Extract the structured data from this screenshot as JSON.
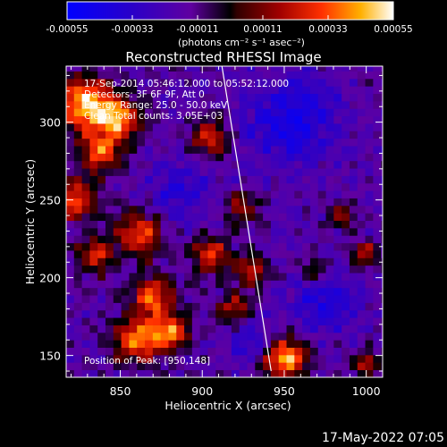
{
  "chart_data": {
    "type": "heatmap",
    "title": "Reconstructed RHESSI Image",
    "xlabel": "Heliocentric X (arcsec)",
    "ylabel": "Heliocentric Y (arcsec)",
    "xlim": [
      817,
      1010
    ],
    "ylim": [
      136,
      336
    ],
    "x_ticks": [
      850,
      900,
      950,
      1000
    ],
    "y_ticks": [
      150,
      200,
      250,
      300
    ],
    "x_tick_labels": [
      "850",
      "900",
      "950",
      "1000"
    ],
    "y_tick_labels": [
      "150",
      "200",
      "250",
      "300"
    ],
    "colorbar": {
      "range": [
        -0.00055,
        0.00055
      ],
      "ticks": [
        -0.00055,
        -0.00033,
        -0.00011,
        0.00011,
        0.00033,
        0.00055
      ],
      "tick_labels": [
        "-0.00055",
        "-0.00033",
        "-0.00011",
        "0.00011",
        "0.00033",
        "0.00055"
      ],
      "unit_label": "(photons cm⁻² s⁻¹ asec⁻²)"
    },
    "annotations": [
      "17-Sep-2014 05:46:12.000 to 05:52:12.000",
      "Detectors: 3F 6F 9F, Att 0",
      "Energy Range: 25.0 - 50.0 keV",
      "Clean     Total counts: 3.05E+03"
    ],
    "peak_label": "Position of Peak:  [950,148]",
    "peak": [
      950,
      148
    ],
    "limb_line": [
      [
        912,
        336
      ],
      [
        942,
        140
      ]
    ],
    "bright_sources": [
      {
        "x": 828,
        "y": 312,
        "amp": 1.0,
        "r": 12
      },
      {
        "x": 848,
        "y": 302,
        "amp": 0.9,
        "r": 10
      },
      {
        "x": 838,
        "y": 280,
        "amp": 0.75,
        "r": 9
      },
      {
        "x": 822,
        "y": 250,
        "amp": 0.8,
        "r": 9
      },
      {
        "x": 862,
        "y": 228,
        "amp": 0.75,
        "r": 10
      },
      {
        "x": 835,
        "y": 215,
        "amp": 0.65,
        "r": 8
      },
      {
        "x": 870,
        "y": 188,
        "amp": 0.85,
        "r": 9
      },
      {
        "x": 860,
        "y": 160,
        "amp": 0.9,
        "r": 10
      },
      {
        "x": 880,
        "y": 165,
        "amp": 0.85,
        "r": 8
      },
      {
        "x": 905,
        "y": 290,
        "amp": 0.7,
        "r": 8
      },
      {
        "x": 905,
        "y": 215,
        "amp": 0.7,
        "r": 8
      },
      {
        "x": 925,
        "y": 245,
        "amp": 0.55,
        "r": 7
      },
      {
        "x": 930,
        "y": 205,
        "amp": 0.6,
        "r": 7
      },
      {
        "x": 920,
        "y": 180,
        "amp": 0.6,
        "r": 7
      },
      {
        "x": 950,
        "y": 148,
        "amp": 1.05,
        "r": 9
      },
      {
        "x": 968,
        "y": 205,
        "amp": 0.5,
        "r": 6
      },
      {
        "x": 985,
        "y": 240,
        "amp": 0.4,
        "r": 6
      },
      {
        "x": 1000,
        "y": 215,
        "amp": 0.55,
        "r": 6
      },
      {
        "x": 1000,
        "y": 145,
        "amp": 0.6,
        "r": 6
      }
    ],
    "dark_regions": [
      {
        "x": 955,
        "y": 300,
        "amp": 0.45,
        "r": 20
      },
      {
        "x": 975,
        "y": 185,
        "amp": 0.4,
        "r": 14
      },
      {
        "x": 930,
        "y": 160,
        "amp": 0.35,
        "r": 10
      },
      {
        "x": 885,
        "y": 255,
        "amp": 0.3,
        "r": 14
      }
    ]
  },
  "footer": {
    "timestamp": "17-May-2022 07:05"
  }
}
